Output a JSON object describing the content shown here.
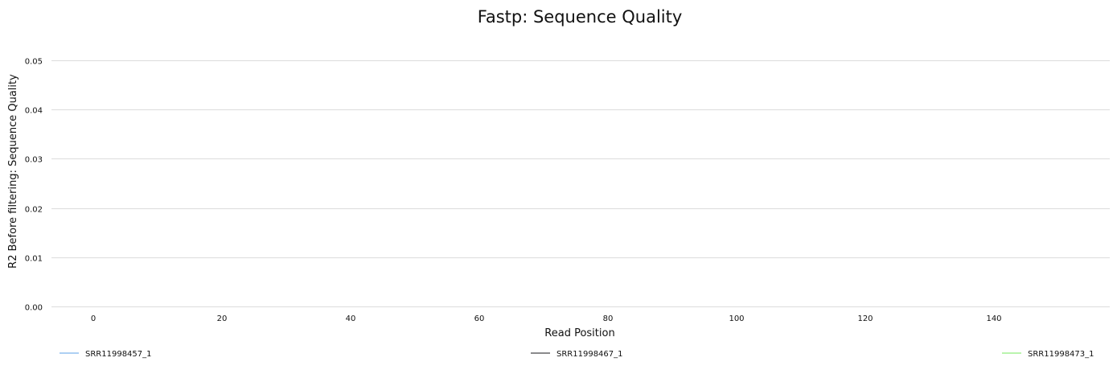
{
  "chart_data": {
    "type": "line",
    "title": "Fastp: Sequence Quality",
    "xlabel": "Read Position",
    "ylabel": "R2 Before filtering: Sequence Quality",
    "xlim": [
      -6.5,
      158
    ],
    "ylim": [
      0,
      0.05
    ],
    "x_ticks": [
      0,
      20,
      40,
      60,
      80,
      100,
      120,
      140
    ],
    "x_tick_labels": [
      "0",
      "20",
      "40",
      "60",
      "80",
      "100",
      "120",
      "140"
    ],
    "y_ticks": [
      0,
      0.01,
      0.02,
      0.03,
      0.04,
      0.05
    ],
    "y_tick_labels": [
      "0.00",
      "0.01",
      "0.02",
      "0.03",
      "0.04",
      "0.05"
    ],
    "grid": true,
    "legend_position": "bottom",
    "series": [
      {
        "name": "SRR11998457_1",
        "color": "#7cb5ec",
        "x": [],
        "y": []
      },
      {
        "name": "SRR11998467_1",
        "color": "#434348",
        "x": [],
        "y": []
      },
      {
        "name": "SRR11998473_1",
        "color": "#90ed7d",
        "x": [],
        "y": []
      }
    ]
  }
}
